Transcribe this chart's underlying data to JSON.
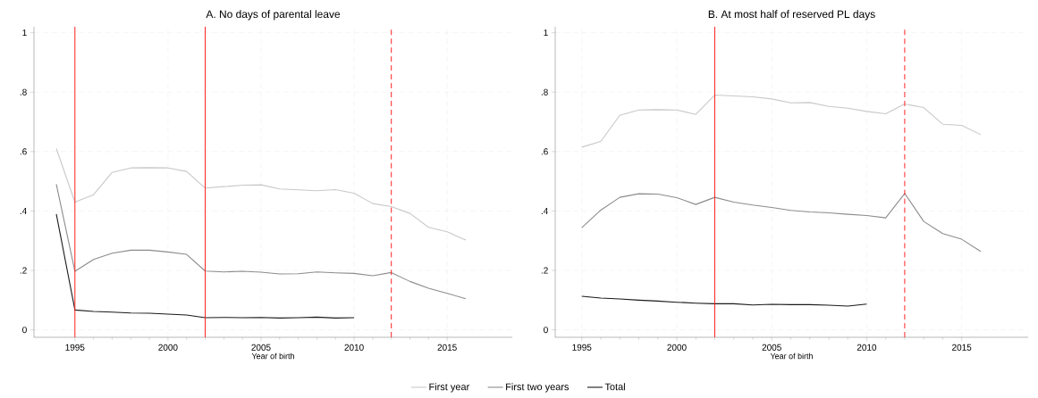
{
  "chart_data": [
    {
      "type": "line",
      "title": "A. No days of parental leave",
      "xlabel": "Year of birth",
      "xlim": [
        1992.8,
        2018.5
      ],
      "xticks": [
        1995,
        2000,
        2005,
        2010,
        2015
      ],
      "ylim": [
        -0.025,
        1.02
      ],
      "yticks": [
        {
          "value": 0,
          "label": "0"
        },
        {
          "value": 0.2,
          "label": ".2"
        },
        {
          "value": 0.4,
          "label": ".4"
        },
        {
          "value": 0.6,
          "label": ".6"
        },
        {
          "value": 0.8,
          "label": ".8"
        },
        {
          "value": 1,
          "label": "1"
        }
      ],
      "grid": true,
      "legend": "bottom",
      "line_style": "solid",
      "series": [
        {
          "name": "First year",
          "color": "#c8c8c8",
          "x": [
            1994,
            1995,
            1996,
            1997,
            1998,
            1999,
            2000,
            2001,
            2002,
            2003,
            2004,
            2005,
            2006,
            2007,
            2008,
            2009,
            2010,
            2011,
            2012,
            2013,
            2014,
            2015,
            2016
          ],
          "values": [
            0.61,
            0.43,
            0.455,
            0.53,
            0.545,
            0.546,
            0.545,
            0.533,
            0.477,
            0.482,
            0.487,
            0.488,
            0.474,
            0.471,
            0.468,
            0.472,
            0.46,
            0.425,
            0.415,
            0.392,
            0.345,
            0.33,
            0.302
          ]
        },
        {
          "name": "First two years",
          "color": "#8c8c8c",
          "x": [
            1994,
            1995,
            1996,
            1997,
            1998,
            1999,
            2000,
            2001,
            2002,
            2003,
            2004,
            2005,
            2006,
            2007,
            2008,
            2009,
            2010,
            2011,
            2012,
            2013,
            2014,
            2015,
            2016
          ],
          "values": [
            0.49,
            0.197,
            0.237,
            0.258,
            0.268,
            0.268,
            0.262,
            0.254,
            0.198,
            0.195,
            0.197,
            0.194,
            0.188,
            0.189,
            0.195,
            0.192,
            0.19,
            0.182,
            0.193,
            0.163,
            0.14,
            0.123,
            0.105
          ]
        },
        {
          "name": "Total",
          "color": "#1a1a1a",
          "x": [
            1994,
            1995,
            1996,
            1997,
            1998,
            1999,
            2000,
            2001,
            2002,
            2003,
            2004,
            2005,
            2006,
            2007,
            2008,
            2009,
            2010
          ],
          "values": [
            0.39,
            0.067,
            0.062,
            0.06,
            0.057,
            0.056,
            0.053,
            0.05,
            0.041,
            0.042,
            0.041,
            0.042,
            0.04,
            0.041,
            0.043,
            0.04,
            0.041
          ]
        }
      ],
      "ref_lines": [
        {
          "axis": "x",
          "value": 1995,
          "color": "#ff2020",
          "line_style": "solid"
        },
        {
          "axis": "x",
          "value": 2002,
          "color": "#ff2020",
          "line_style": "solid"
        },
        {
          "axis": "x",
          "value": 2012,
          "color": "#ff2020",
          "line_style": "dashed"
        }
      ]
    },
    {
      "type": "line",
      "title": "B. At most half of reserved PL days",
      "xlabel": "Year of birth",
      "xlim": [
        1993.6,
        2018.5
      ],
      "xticks": [
        1995,
        2000,
        2005,
        2010,
        2015
      ],
      "ylim": [
        -0.025,
        1.02
      ],
      "yticks": [
        {
          "value": 0,
          "label": "0"
        },
        {
          "value": 0.2,
          "label": ".2"
        },
        {
          "value": 0.4,
          "label": ".4"
        },
        {
          "value": 0.6,
          "label": ".6"
        },
        {
          "value": 0.8,
          "label": ".8"
        },
        {
          "value": 1,
          "label": "1"
        }
      ],
      "grid": true,
      "line_style": "solid",
      "series": [
        {
          "color": "#c8c8c8",
          "x": [
            1995,
            1996,
            1997,
            1998,
            1999,
            2000,
            2001,
            2002,
            2003,
            2004,
            2005,
            2006,
            2007,
            2008,
            2009,
            2010,
            2011,
            2012,
            2013,
            2014,
            2015,
            2016
          ],
          "values": [
            0.615,
            0.634,
            0.722,
            0.74,
            0.741,
            0.74,
            0.725,
            0.79,
            0.787,
            0.784,
            0.777,
            0.764,
            0.765,
            0.752,
            0.746,
            0.735,
            0.727,
            0.76,
            0.748,
            0.692,
            0.688,
            0.657
          ]
        },
        {
          "color": "#8c8c8c",
          "x": [
            1995,
            1996,
            1997,
            1998,
            1999,
            2000,
            2001,
            2002,
            2003,
            2004,
            2005,
            2006,
            2007,
            2008,
            2009,
            2010,
            2011,
            2012,
            2013,
            2014,
            2015,
            2016
          ],
          "values": [
            0.344,
            0.403,
            0.446,
            0.458,
            0.457,
            0.445,
            0.422,
            0.446,
            0.43,
            0.42,
            0.412,
            0.402,
            0.397,
            0.394,
            0.389,
            0.385,
            0.377,
            0.459,
            0.365,
            0.324,
            0.305,
            0.264
          ]
        },
        {
          "color": "#1a1a1a",
          "x": [
            1995,
            1996,
            1997,
            1998,
            1999,
            2000,
            2001,
            2002,
            2003,
            2004,
            2005,
            2006,
            2007,
            2008,
            2009,
            2010
          ],
          "values": [
            0.113,
            0.107,
            0.104,
            0.1,
            0.097,
            0.093,
            0.09,
            0.088,
            0.088,
            0.084,
            0.086,
            0.085,
            0.085,
            0.083,
            0.08,
            0.087
          ]
        }
      ],
      "ref_lines": [
        {
          "axis": "x",
          "value": 2002,
          "color": "#ff2020",
          "line_style": "solid"
        },
        {
          "axis": "x",
          "value": 2012,
          "color": "#ff2020",
          "line_style": "dashed"
        }
      ]
    }
  ]
}
